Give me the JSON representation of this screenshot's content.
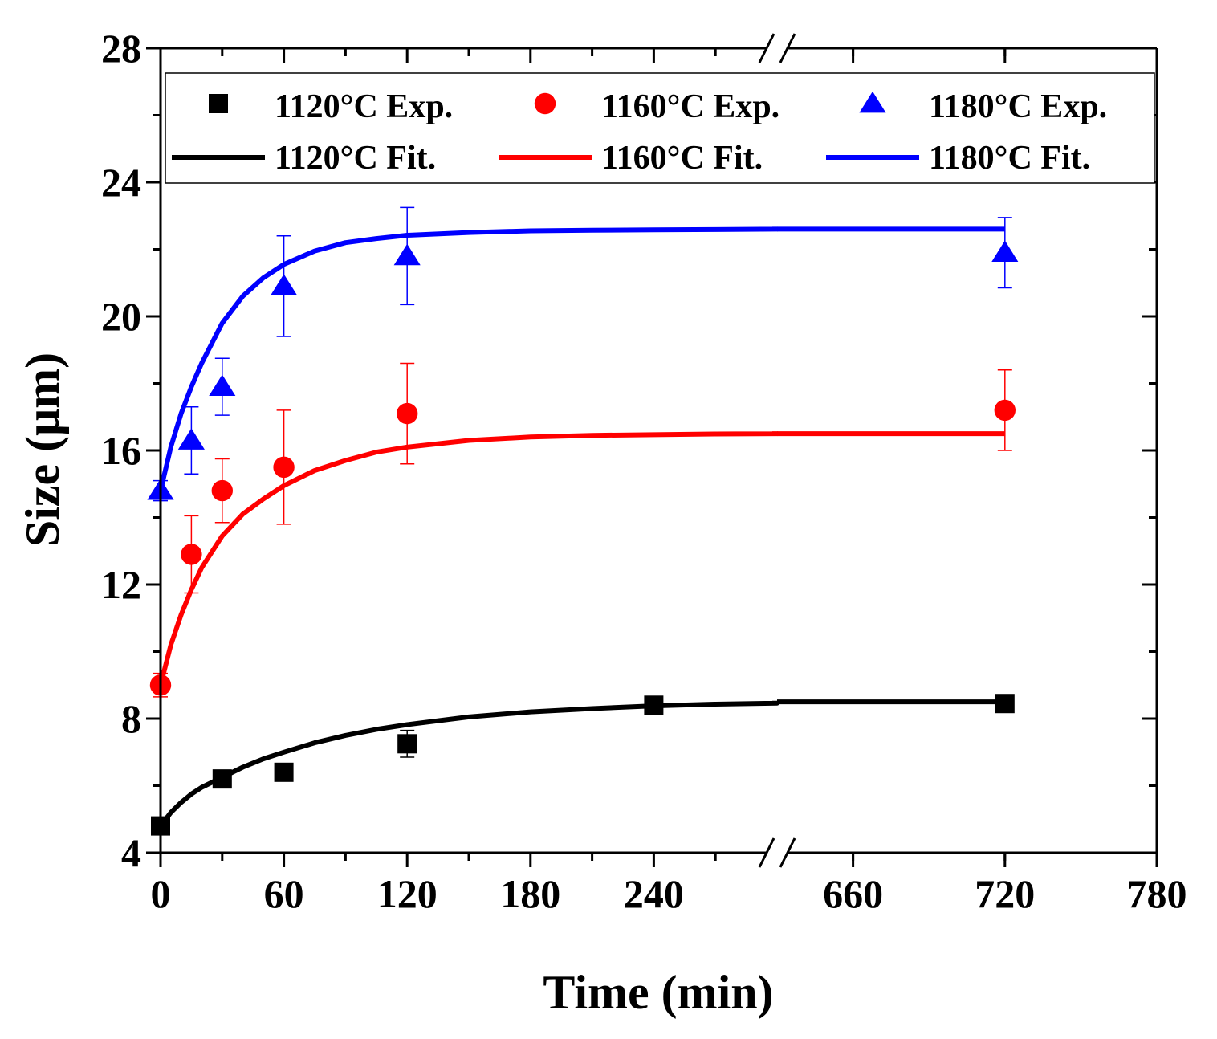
{
  "chart_data": {
    "type": "line",
    "title": "",
    "xlabel": "Time (min)",
    "ylabel": "Size (μm)",
    "ylim": [
      4,
      28
    ],
    "yticks": [
      4,
      8,
      12,
      16,
      20,
      24,
      28
    ],
    "axis_break": {
      "from": 300,
      "to": 630
    },
    "x_segments": [
      {
        "range": [
          0,
          300
        ],
        "ticks": [
          0,
          60,
          120,
          180,
          240
        ]
      },
      {
        "range": [
          630,
          780
        ],
        "ticks": [
          660,
          720,
          780
        ]
      }
    ],
    "break_mark": "//",
    "legend_position": "top",
    "series": [
      {
        "name": "1120°C Exp.",
        "kind": "scatter",
        "marker": "square",
        "color": "#000000",
        "x": [
          0,
          30,
          60,
          120,
          240,
          720
        ],
        "y": [
          4.8,
          6.2,
          6.4,
          7.25,
          8.4,
          8.45
        ],
        "err": [
          0.1,
          0.15,
          0.25,
          0.4,
          0.15,
          0.15
        ]
      },
      {
        "name": "1160°C Exp.",
        "kind": "scatter",
        "marker": "circle",
        "color": "#ff0000",
        "x": [
          0,
          15,
          30,
          60,
          120,
          720
        ],
        "y": [
          9.0,
          12.9,
          14.8,
          15.5,
          17.1,
          17.2
        ],
        "err": [
          0.35,
          1.15,
          0.95,
          1.7,
          1.5,
          1.2
        ]
      },
      {
        "name": "1180°C Exp.",
        "kind": "scatter",
        "marker": "triangle",
        "color": "#0000ff",
        "x": [
          0,
          15,
          30,
          60,
          120,
          720
        ],
        "y": [
          14.8,
          16.3,
          17.9,
          20.9,
          21.8,
          21.9
        ],
        "err": [
          0.3,
          1.0,
          0.85,
          1.5,
          1.45,
          1.05
        ]
      },
      {
        "name": "1120°C Fit.",
        "kind": "line",
        "color": "#000000",
        "x": [
          0,
          5,
          10,
          15,
          20,
          30,
          40,
          50,
          60,
          75,
          90,
          105,
          120,
          150,
          180,
          210,
          240,
          270,
          300,
          630,
          720
        ],
        "y": [
          4.8,
          5.2,
          5.5,
          5.75,
          5.95,
          6.25,
          6.55,
          6.8,
          7.0,
          7.28,
          7.5,
          7.68,
          7.82,
          8.05,
          8.2,
          8.3,
          8.38,
          8.43,
          8.46,
          8.5,
          8.5
        ]
      },
      {
        "name": "1160°C Fit.",
        "kind": "line",
        "color": "#ff0000",
        "x": [
          0,
          5,
          10,
          15,
          20,
          30,
          40,
          50,
          60,
          75,
          90,
          105,
          120,
          150,
          180,
          210,
          240,
          270,
          300,
          630,
          720
        ],
        "y": [
          9.0,
          10.2,
          11.1,
          11.85,
          12.5,
          13.45,
          14.1,
          14.55,
          14.95,
          15.4,
          15.7,
          15.95,
          16.1,
          16.3,
          16.4,
          16.45,
          16.47,
          16.49,
          16.5,
          16.5,
          16.5
        ]
      },
      {
        "name": "1180°C Fit.",
        "kind": "line",
        "color": "#0000ff",
        "x": [
          0,
          5,
          10,
          15,
          20,
          30,
          40,
          50,
          60,
          75,
          90,
          105,
          120,
          150,
          180,
          210,
          240,
          270,
          300,
          630,
          720
        ],
        "y": [
          14.8,
          16.1,
          17.1,
          17.9,
          18.6,
          19.8,
          20.6,
          21.15,
          21.55,
          21.95,
          22.2,
          22.32,
          22.42,
          22.5,
          22.55,
          22.57,
          22.58,
          22.59,
          22.6,
          22.6,
          22.6
        ]
      }
    ]
  }
}
